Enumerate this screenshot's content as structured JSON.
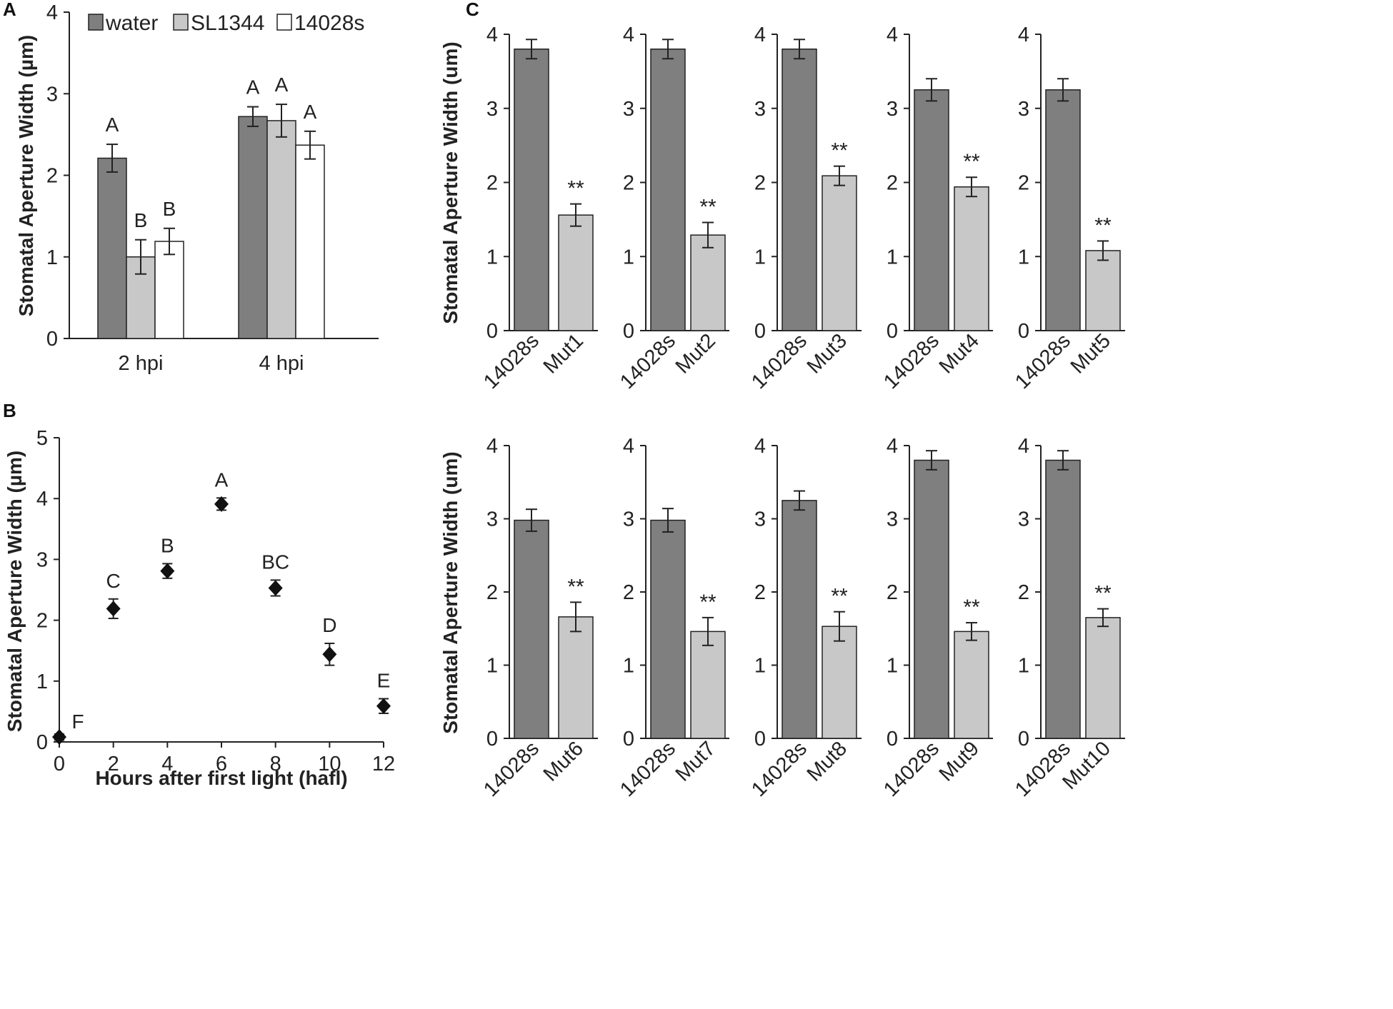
{
  "colors": {
    "water": "#7f7f7f",
    "SL1344": "#c8c8c8",
    "14028s": "#ffffff",
    "wt": "#7f7f7f",
    "mut": "#c8c8c8",
    "ink": "#222222"
  },
  "chart_data": [
    {
      "id": "A",
      "panel_label": "A",
      "type": "bar",
      "ylabel": "Stomatal Aperture Width (µm)",
      "xlabel": "",
      "ylim": [
        0,
        4
      ],
      "yticks": [
        "0",
        "1",
        "2",
        "3",
        "4"
      ],
      "categories": [
        "2 hpi",
        "4 hpi"
      ],
      "legend": [
        "water",
        "SL1344",
        "14028s"
      ],
      "series": [
        {
          "name": "water",
          "values": [
            2.21,
            2.72
          ],
          "errors": [
            0.17,
            0.12
          ],
          "letters": [
            "A",
            "A"
          ]
        },
        {
          "name": "SL1344",
          "values": [
            1.0,
            2.67
          ],
          "errors": [
            0.21,
            0.2
          ],
          "letters": [
            "B",
            "A"
          ]
        },
        {
          "name": "14028s",
          "values": [
            1.19,
            2.37
          ],
          "errors": [
            0.16,
            0.17
          ],
          "letters": [
            "B",
            "A"
          ]
        }
      ]
    },
    {
      "id": "B",
      "panel_label": "B",
      "type": "scatter",
      "ylabel": "Stomatal Aperture Width (µm)",
      "xlabel": "Hours after first light (hafl)",
      "xlim": [
        0,
        12
      ],
      "ylim": [
        0,
        5
      ],
      "xticks": [
        "0",
        "2",
        "4",
        "6",
        "8",
        "10",
        "12"
      ],
      "yticks": [
        "0",
        "1",
        "2",
        "3",
        "4",
        "5"
      ],
      "x": [
        0,
        2,
        4,
        6,
        8,
        10,
        12
      ],
      "y": [
        0.08,
        2.19,
        2.81,
        3.91,
        2.53,
        1.44,
        0.59
      ],
      "errors": [
        0.05,
        0.16,
        0.12,
        0.1,
        0.13,
        0.18,
        0.12
      ],
      "letters": [
        "F",
        "C",
        "B",
        "A",
        "BC",
        "D",
        "E"
      ]
    }
  ],
  "panelC": {
    "panel_label": "C",
    "ylabel": "Stomatal Aperture Width (um)",
    "ylim": [
      0,
      4
    ],
    "yticks": [
      "0",
      "1",
      "2",
      "3",
      "4"
    ],
    "sig": "**",
    "subcharts": [
      {
        "categories": [
          "14028s",
          "Mut1"
        ],
        "values": [
          3.8,
          1.56
        ],
        "errors": [
          0.13,
          0.15
        ]
      },
      {
        "categories": [
          "14028s",
          "Mut2"
        ],
        "values": [
          3.8,
          1.29
        ],
        "errors": [
          0.13,
          0.17
        ]
      },
      {
        "categories": [
          "14028s",
          "Mut3"
        ],
        "values": [
          3.8,
          2.09
        ],
        "errors": [
          0.13,
          0.13
        ]
      },
      {
        "categories": [
          "14028s",
          "Mut4"
        ],
        "values": [
          3.25,
          1.94
        ],
        "errors": [
          0.15,
          0.13
        ]
      },
      {
        "categories": [
          "14028s",
          "Mut5"
        ],
        "values": [
          3.25,
          1.08
        ],
        "errors": [
          0.15,
          0.13
        ]
      },
      {
        "categories": [
          "14028s",
          "Mut6"
        ],
        "values": [
          2.98,
          1.66
        ],
        "errors": [
          0.15,
          0.2
        ]
      },
      {
        "categories": [
          "14028s",
          "Mut7"
        ],
        "values": [
          2.98,
          1.46
        ],
        "errors": [
          0.16,
          0.19
        ]
      },
      {
        "categories": [
          "14028s",
          "Mut8"
        ],
        "values": [
          3.25,
          1.53
        ],
        "errors": [
          0.13,
          0.2
        ]
      },
      {
        "categories": [
          "14028s",
          "Mut9"
        ],
        "values": [
          3.8,
          1.46
        ],
        "errors": [
          0.13,
          0.12
        ]
      },
      {
        "categories": [
          "14028s",
          "Mut10"
        ],
        "values": [
          3.8,
          1.65
        ],
        "errors": [
          0.13,
          0.12
        ]
      }
    ]
  }
}
